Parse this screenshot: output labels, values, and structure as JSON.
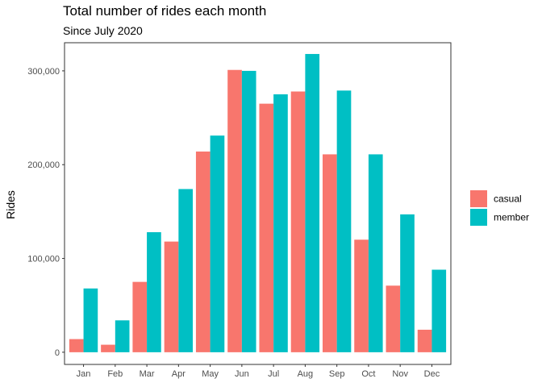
{
  "chart_data": {
    "type": "bar",
    "title": "Total number of rides each month",
    "subtitle": "Since July 2020",
    "xlabel": "",
    "ylabel": "Rides",
    "categories": [
      "Jan",
      "Feb",
      "Mar",
      "Apr",
      "May",
      "Jun",
      "Jul",
      "Aug",
      "Sep",
      "Oct",
      "Nov",
      "Dec"
    ],
    "series": [
      {
        "name": "casual",
        "color": "#F8766D",
        "values": [
          14000,
          8000,
          75000,
          118000,
          214000,
          301000,
          265000,
          278000,
          211000,
          120000,
          71000,
          24000
        ]
      },
      {
        "name": "member",
        "color": "#00BFC4",
        "values": [
          68000,
          34000,
          128000,
          174000,
          231000,
          300000,
          275000,
          318000,
          279000,
          211000,
          147000,
          88000
        ]
      }
    ],
    "ylim": [
      -13000,
      330000
    ],
    "yticks": [
      0,
      100000,
      200000,
      300000
    ],
    "ytick_labels": [
      "0",
      "100,000",
      "200,000",
      "300,000"
    ],
    "grid": false,
    "legend_position": "right"
  }
}
